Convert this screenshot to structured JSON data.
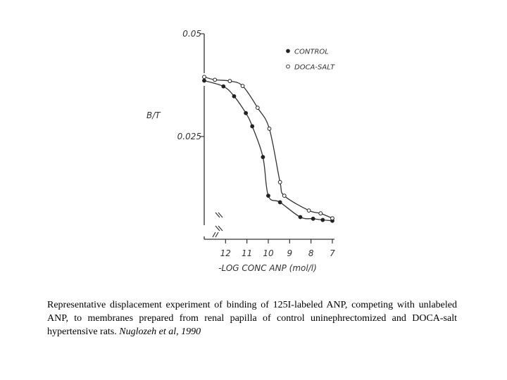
{
  "chart_data": {
    "type": "scatter",
    "ylabel": "B/T",
    "xlabel": "-LOG CONC ANP (mol/l)",
    "yticks": [
      {
        "value": 0.05,
        "label": "0.05"
      },
      {
        "value": 0.025,
        "label": "0.025"
      }
    ],
    "xticks": [
      {
        "value": 12,
        "label": "12"
      },
      {
        "value": 11,
        "label": "11"
      },
      {
        "value": 10,
        "label": "10"
      },
      {
        "value": 9,
        "label": "9"
      },
      {
        "value": 8,
        "label": "8"
      },
      {
        "value": 7,
        "label": "7"
      }
    ],
    "xlim": [
      13,
      6.9
    ],
    "ylim": [
      0,
      0.05
    ],
    "x_reversed": true,
    "axis_breaks": true,
    "legend_position": "top-right",
    "series": [
      {
        "name": "CONTROL",
        "marker": "filled-circle",
        "points": [
          {
            "x": 13.0,
            "y": 0.0386
          },
          {
            "x": 12.1,
            "y": 0.0372
          },
          {
            "x": 11.6,
            "y": 0.0348
          },
          {
            "x": 11.05,
            "y": 0.0307
          },
          {
            "x": 10.75,
            "y": 0.0275
          },
          {
            "x": 10.25,
            "y": 0.02
          },
          {
            "x": 10.0,
            "y": 0.0106
          },
          {
            "x": 9.45,
            "y": 0.009
          },
          {
            "x": 8.5,
            "y": 0.0054
          },
          {
            "x": 7.9,
            "y": 0.005
          },
          {
            "x": 7.45,
            "y": 0.0047
          },
          {
            "x": 7.0,
            "y": 0.0045
          }
        ]
      },
      {
        "name": "DOCA-SALT",
        "marker": "open-circle",
        "points": [
          {
            "x": 13.0,
            "y": 0.0395
          },
          {
            "x": 12.5,
            "y": 0.0388
          },
          {
            "x": 11.8,
            "y": 0.0385
          },
          {
            "x": 11.2,
            "y": 0.0373
          },
          {
            "x": 10.5,
            "y": 0.032
          },
          {
            "x": 9.95,
            "y": 0.0269
          },
          {
            "x": 9.45,
            "y": 0.0139
          },
          {
            "x": 9.25,
            "y": 0.0106
          },
          {
            "x": 8.1,
            "y": 0.007
          },
          {
            "x": 7.55,
            "y": 0.0063
          },
          {
            "x": 7.0,
            "y": 0.0051
          }
        ]
      }
    ]
  },
  "caption": {
    "text": "Representative displacement experiment of binding of 125I-labeled ANP, competing with unlabeled ANP, to membranes prepared from renal papilla of control uninephrectomized and DOCA-salt hypertensive rats. ",
    "citation": "Nuglozeh et al, 1990"
  }
}
